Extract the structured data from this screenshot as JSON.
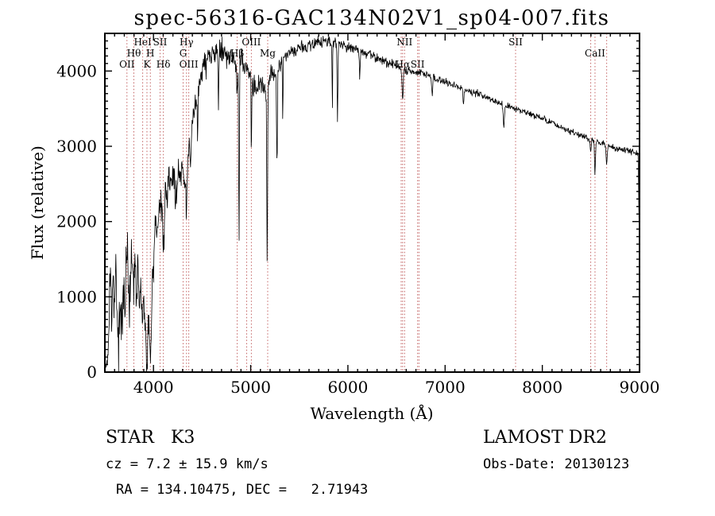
{
  "title": "spec-56316-GAC134N02V1_sp04-007.fits",
  "axes": {
    "xlabel": "Wavelength (Å)",
    "ylabel": "Flux (relative)"
  },
  "footer": {
    "class_label": "STAR   K3",
    "cz_line": "cz = 7.2 ± 15.9 km/s",
    "radec_line": "RA = 134.10475, DEC =   2.71943",
    "survey": "LAMOST DR2",
    "obs_date": "Obs-Date: 20130123"
  },
  "colors": {
    "background": "#ffffff",
    "axis": "#000000",
    "spectrum": "#000000",
    "marker_line": "#b03030",
    "marker_label": "#8b1f1f"
  },
  "chart_data": {
    "type": "line",
    "title": "spec-56316-GAC134N02V1_sp04-007.fits",
    "xlabel": "Wavelength (Å)",
    "ylabel": "Flux (relative)",
    "xlim": [
      3500,
      9000
    ],
    "ylim": [
      0,
      4500
    ],
    "x_ticks": [
      4000,
      5000,
      6000,
      7000,
      8000,
      9000
    ],
    "y_ticks": [
      0,
      1000,
      2000,
      3000,
      4000
    ],
    "grid": false,
    "legend": "none",
    "spectral_markers": [
      {
        "wl": 3727,
        "label": "OII",
        "row": 2
      },
      {
        "wl": 3798,
        "label": "Hθ",
        "row": 1
      },
      {
        "wl": 3889,
        "label": "HeI",
        "row": 0
      },
      {
        "wl": 3933,
        "label": "K",
        "row": 2
      },
      {
        "wl": 3968,
        "label": "H",
        "row": 1
      },
      {
        "wl": 4068,
        "label": "SII",
        "row": 0
      },
      {
        "wl": 4102,
        "label": "Hδ",
        "row": 2
      },
      {
        "wl": 4305,
        "label": "G",
        "row": 1
      },
      {
        "wl": 4340,
        "label": "Hγ",
        "row": 0
      },
      {
        "wl": 4363,
        "label": "OIII",
        "row": 2
      },
      {
        "wl": 4861,
        "label": "Hβ",
        "row": 1
      },
      {
        "wl": 4959,
        "label": "",
        "row": 0
      },
      {
        "wl": 5007,
        "label": "OIII",
        "row": 0
      },
      {
        "wl": 5175,
        "label": "Mg",
        "row": 1
      },
      {
        "wl": 6548,
        "label": "",
        "row": 0
      },
      {
        "wl": 6563,
        "label": "Hα",
        "row": 2
      },
      {
        "wl": 6583,
        "label": "NII",
        "row": 0
      },
      {
        "wl": 6717,
        "label": "SII",
        "row": 2
      },
      {
        "wl": 6731,
        "label": "",
        "row": 2
      },
      {
        "wl": 7725,
        "label": "SII",
        "row": 0
      },
      {
        "wl": 8498,
        "label": "",
        "row": 1
      },
      {
        "wl": 8542,
        "label": "CaII",
        "row": 1
      },
      {
        "wl": 8662,
        "label": "",
        "row": 1
      }
    ],
    "series": [
      {
        "name": "observed spectrum",
        "color": "#000000",
        "sample_step_angstrom": 4,
        "noise_seed": 20130123,
        "continuum_anchors": [
          [
            3505,
            30
          ],
          [
            3520,
            80
          ],
          [
            3540,
            420
          ],
          [
            3555,
            1500
          ],
          [
            3570,
            700
          ],
          [
            3585,
            1200
          ],
          [
            3600,
            800
          ],
          [
            3615,
            1500
          ],
          [
            3630,
            600
          ],
          [
            3645,
            350
          ],
          [
            3660,
            1050
          ],
          [
            3675,
            600
          ],
          [
            3690,
            1250
          ],
          [
            3705,
            800
          ],
          [
            3720,
            1500
          ],
          [
            3735,
            1750
          ],
          [
            3750,
            650
          ],
          [
            3765,
            1150
          ],
          [
            3780,
            1650
          ],
          [
            3795,
            1050
          ],
          [
            3810,
            1450
          ],
          [
            3825,
            900
          ],
          [
            3840,
            1400
          ],
          [
            3855,
            800
          ],
          [
            3870,
            1150
          ],
          [
            3885,
            650
          ],
          [
            3900,
            950
          ],
          [
            3915,
            700
          ],
          [
            3930,
            450
          ],
          [
            3945,
            800
          ],
          [
            3960,
            550
          ],
          [
            3975,
            750
          ],
          [
            3990,
            1150
          ],
          [
            4005,
            1600
          ],
          [
            4020,
            2050
          ],
          [
            4035,
            1800
          ],
          [
            4050,
            2150
          ],
          [
            4065,
            2300
          ],
          [
            4080,
            2100
          ],
          [
            4095,
            2350
          ],
          [
            4110,
            2150
          ],
          [
            4125,
            2450
          ],
          [
            4140,
            2300
          ],
          [
            4155,
            2600
          ],
          [
            4170,
            2450
          ],
          [
            4185,
            2650
          ],
          [
            4200,
            2500
          ],
          [
            4220,
            2700
          ],
          [
            4240,
            2450
          ],
          [
            4260,
            2750
          ],
          [
            4280,
            2600
          ],
          [
            4300,
            2750
          ],
          [
            4320,
            2550
          ],
          [
            4340,
            2650
          ],
          [
            4360,
            2950
          ],
          [
            4380,
            3150
          ],
          [
            4400,
            3350
          ],
          [
            4430,
            3550
          ],
          [
            4460,
            3750
          ],
          [
            4500,
            3950
          ],
          [
            4540,
            4100
          ],
          [
            4580,
            4180
          ],
          [
            4620,
            4220
          ],
          [
            4680,
            4250
          ],
          [
            4740,
            4230
          ],
          [
            4800,
            4180
          ],
          [
            4860,
            4120
          ],
          [
            4900,
            4180
          ],
          [
            4940,
            4050
          ],
          [
            4980,
            3950
          ],
          [
            5020,
            3850
          ],
          [
            5060,
            3750
          ],
          [
            5100,
            3850
          ],
          [
            5140,
            3700
          ],
          [
            5180,
            3850
          ],
          [
            5220,
            4000
          ],
          [
            5260,
            3950
          ],
          [
            5300,
            4100
          ],
          [
            5360,
            4180
          ],
          [
            5420,
            4250
          ],
          [
            5480,
            4300
          ],
          [
            5540,
            4320
          ],
          [
            5600,
            4330
          ],
          [
            5660,
            4360
          ],
          [
            5720,
            4380
          ],
          [
            5780,
            4400
          ],
          [
            5840,
            4380
          ],
          [
            5900,
            4360
          ],
          [
            5960,
            4340
          ],
          [
            6020,
            4310
          ],
          [
            6080,
            4280
          ],
          [
            6140,
            4250
          ],
          [
            6200,
            4220
          ],
          [
            6260,
            4190
          ],
          [
            6320,
            4160
          ],
          [
            6380,
            4130
          ],
          [
            6440,
            4100
          ],
          [
            6500,
            4070
          ],
          [
            6560,
            4040
          ],
          [
            6620,
            4010
          ],
          [
            6680,
            3990
          ],
          [
            6740,
            3970
          ],
          [
            6800,
            3950
          ],
          [
            6860,
            3920
          ],
          [
            6920,
            3890
          ],
          [
            6980,
            3870
          ],
          [
            7040,
            3840
          ],
          [
            7100,
            3810
          ],
          [
            7160,
            3780
          ],
          [
            7220,
            3750
          ],
          [
            7280,
            3720
          ],
          [
            7340,
            3690
          ],
          [
            7400,
            3660
          ],
          [
            7460,
            3630
          ],
          [
            7520,
            3600
          ],
          [
            7580,
            3570
          ],
          [
            7640,
            3540
          ],
          [
            7700,
            3510
          ],
          [
            7760,
            3490
          ],
          [
            7820,
            3460
          ],
          [
            7880,
            3430
          ],
          [
            7940,
            3400
          ],
          [
            8000,
            3370
          ],
          [
            8060,
            3330
          ],
          [
            8120,
            3300
          ],
          [
            8180,
            3260
          ],
          [
            8240,
            3230
          ],
          [
            8300,
            3190
          ],
          [
            8360,
            3160
          ],
          [
            8420,
            3130
          ],
          [
            8480,
            3100
          ],
          [
            8540,
            3070
          ],
          [
            8600,
            3040
          ],
          [
            8660,
            3010
          ],
          [
            8720,
            2990
          ],
          [
            8780,
            2970
          ],
          [
            8840,
            2950
          ],
          [
            8900,
            2940
          ],
          [
            8950,
            2930
          ],
          [
            8985,
            2900
          ],
          [
            9000,
            1550
          ]
        ],
        "absorption_lines": [
          [
            3933,
            650,
            7
          ],
          [
            3968,
            550,
            7
          ],
          [
            4101,
            600,
            6
          ],
          [
            4226,
            450,
            5
          ],
          [
            4340,
            550,
            6
          ],
          [
            4383,
            420,
            5
          ],
          [
            4455,
            600,
            4
          ],
          [
            4668,
            650,
            4
          ],
          [
            4861,
            420,
            6
          ],
          [
            4880,
            2600,
            3.5
          ],
          [
            5007,
            900,
            3
          ],
          [
            5170,
            2400,
            4
          ],
          [
            5270,
            1250,
            4
          ],
          [
            5330,
            800,
            3
          ],
          [
            5840,
            850,
            3
          ],
          [
            5893,
            1050,
            4
          ],
          [
            6122,
            350,
            4
          ],
          [
            6563,
            420,
            6
          ],
          [
            6867,
            260,
            5
          ],
          [
            7190,
            200,
            5
          ],
          [
            7605,
            280,
            6
          ],
          [
            8498,
            180,
            5
          ],
          [
            8542,
            420,
            5
          ],
          [
            8662,
            280,
            5
          ]
        ],
        "noise_anchors": [
          [
            3505,
            160
          ],
          [
            3600,
            330
          ],
          [
            3700,
            360
          ],
          [
            3800,
            340
          ],
          [
            3900,
            320
          ],
          [
            4000,
            290
          ],
          [
            4100,
            260
          ],
          [
            4200,
            240
          ],
          [
            4300,
            230
          ],
          [
            4400,
            210
          ],
          [
            4500,
            190
          ],
          [
            4600,
            170
          ],
          [
            4700,
            160
          ],
          [
            4800,
            155
          ],
          [
            4900,
            150
          ],
          [
            5000,
            140
          ],
          [
            5100,
            135
          ],
          [
            5200,
            120
          ],
          [
            5300,
            110
          ],
          [
            5400,
            100
          ],
          [
            5500,
            95
          ],
          [
            5600,
            90
          ],
          [
            5800,
            80
          ],
          [
            6000,
            75
          ],
          [
            6200,
            68
          ],
          [
            6400,
            62
          ],
          [
            6600,
            58
          ],
          [
            6800,
            55
          ],
          [
            7000,
            50
          ],
          [
            7200,
            48
          ],
          [
            7400,
            45
          ],
          [
            7600,
            44
          ],
          [
            7800,
            42
          ],
          [
            8000,
            42
          ],
          [
            8200,
            43
          ],
          [
            8400,
            44
          ],
          [
            8600,
            46
          ],
          [
            8800,
            45
          ],
          [
            9000,
            42
          ]
        ]
      }
    ]
  }
}
